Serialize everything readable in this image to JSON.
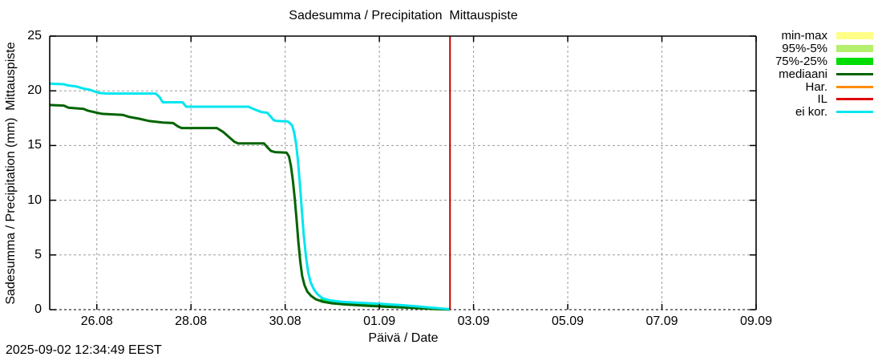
{
  "title": "Sadesumma / Precipitation  Mittauspiste",
  "timestamp": "2025-09-02 12:34:49 EEST",
  "axes": {
    "x_label": "Päivä / Date",
    "y_label": "Sadesumma / Precipitation (mm)  Mittauspiste"
  },
  "legend": [
    {
      "label": "min-max",
      "color": "#ffff87",
      "type": "band"
    },
    {
      "label": "95%-5%",
      "color": "#b4f06e",
      "type": "band"
    },
    {
      "label": "75%-25%",
      "color": "#00dd00",
      "type": "band"
    },
    {
      "label": "mediaani",
      "color": "#006400",
      "type": "line"
    },
    {
      "label": "Har.",
      "color": "#ff8c00",
      "type": "line"
    },
    {
      "label": "IL",
      "color": "#e00000",
      "type": "line"
    },
    {
      "label": "ei kor.",
      "color": "#00e6ee",
      "type": "line"
    }
  ],
  "chart_data": {
    "type": "line",
    "title": "Sadesumma / Precipitation  Mittauspiste",
    "xlabel": "Päivä / Date",
    "ylabel": "Sadesumma / Precipitation (mm)  Mittauspiste",
    "ylim": [
      0,
      25
    ],
    "y_ticks": [
      0,
      5,
      10,
      15,
      20,
      25
    ],
    "x_domain_days": [
      0,
      15
    ],
    "x_ticks": [
      {
        "day": 1,
        "label": "26.08"
      },
      {
        "day": 3,
        "label": "28.08"
      },
      {
        "day": 5,
        "label": "30.08"
      },
      {
        "day": 7,
        "label": "01.09"
      },
      {
        "day": 9,
        "label": "03.09"
      },
      {
        "day": 11,
        "label": "05.09"
      },
      {
        "day": 13,
        "label": "07.09"
      },
      {
        "day": 15,
        "label": "09.09"
      }
    ],
    "grid": true,
    "legend_position": "outside-top-right",
    "current_time_line": {
      "day": 8.5,
      "date_label": "02.09 ~12:34",
      "color": "#c40000"
    },
    "series": [
      {
        "name": "75%-25%",
        "color": "#00dd00",
        "width": 2,
        "points": [
          [
            5.75,
            0.95
          ],
          [
            5.95,
            0.78
          ],
          [
            6.2,
            0.66
          ],
          [
            6.6,
            0.56
          ],
          [
            7.0,
            0.47
          ],
          [
            7.4,
            0.37
          ],
          [
            7.8,
            0.25
          ],
          [
            8.15,
            0.12
          ],
          [
            8.5,
            0.02
          ]
        ]
      },
      {
        "name": "mediaani",
        "color": "#006400",
        "width": 3,
        "points": [
          [
            0,
            18.7
          ],
          [
            0.3,
            18.65
          ],
          [
            0.4,
            18.45
          ],
          [
            0.72,
            18.35
          ],
          [
            0.8,
            18.2
          ],
          [
            1.0,
            18.0
          ],
          [
            1.1,
            17.9
          ],
          [
            1.55,
            17.8
          ],
          [
            1.7,
            17.6
          ],
          [
            1.9,
            17.45
          ],
          [
            2.1,
            17.25
          ],
          [
            2.4,
            17.1
          ],
          [
            2.62,
            17.05
          ],
          [
            2.72,
            16.75
          ],
          [
            2.8,
            16.6
          ],
          [
            3.55,
            16.6
          ],
          [
            3.68,
            16.25
          ],
          [
            3.8,
            15.8
          ],
          [
            3.92,
            15.35
          ],
          [
            4.0,
            15.2
          ],
          [
            4.55,
            15.2
          ],
          [
            4.62,
            14.85
          ],
          [
            4.7,
            14.5
          ],
          [
            4.78,
            14.4
          ],
          [
            5.03,
            14.35
          ],
          [
            5.08,
            14.0
          ],
          [
            5.12,
            13.2
          ],
          [
            5.16,
            11.9
          ],
          [
            5.2,
            10.3
          ],
          [
            5.24,
            8.3
          ],
          [
            5.28,
            6.2
          ],
          [
            5.32,
            4.4
          ],
          [
            5.36,
            3.1
          ],
          [
            5.41,
            2.25
          ],
          [
            5.47,
            1.65
          ],
          [
            5.55,
            1.25
          ],
          [
            5.65,
            0.95
          ],
          [
            5.8,
            0.72
          ],
          [
            6.0,
            0.58
          ],
          [
            6.3,
            0.47
          ],
          [
            6.7,
            0.37
          ],
          [
            7.1,
            0.28
          ],
          [
            7.5,
            0.2
          ],
          [
            7.9,
            0.12
          ],
          [
            8.2,
            0.06
          ],
          [
            8.5,
            0.01
          ]
        ]
      },
      {
        "name": "ei kor.",
        "color": "#00e6ee",
        "width": 3,
        "points": [
          [
            0,
            20.65
          ],
          [
            0.3,
            20.6
          ],
          [
            0.38,
            20.5
          ],
          [
            0.56,
            20.4
          ],
          [
            0.72,
            20.2
          ],
          [
            0.85,
            20.1
          ],
          [
            0.95,
            19.95
          ],
          [
            1.05,
            19.8
          ],
          [
            1.2,
            19.75
          ],
          [
            2.25,
            19.75
          ],
          [
            2.33,
            19.45
          ],
          [
            2.4,
            18.95
          ],
          [
            2.82,
            18.95
          ],
          [
            2.9,
            18.55
          ],
          [
            4.22,
            18.55
          ],
          [
            4.32,
            18.35
          ],
          [
            4.5,
            18.05
          ],
          [
            4.62,
            18.0
          ],
          [
            4.68,
            17.7
          ],
          [
            4.76,
            17.3
          ],
          [
            4.82,
            17.25
          ],
          [
            5.05,
            17.2
          ],
          [
            5.1,
            17.05
          ],
          [
            5.15,
            16.8
          ],
          [
            5.19,
            16.2
          ],
          [
            5.23,
            15.2
          ],
          [
            5.27,
            13.7
          ],
          [
            5.31,
            11.6
          ],
          [
            5.35,
            9.3
          ],
          [
            5.39,
            7.0
          ],
          [
            5.44,
            4.9
          ],
          [
            5.49,
            3.4
          ],
          [
            5.54,
            2.5
          ],
          [
            5.61,
            1.85
          ],
          [
            5.69,
            1.4
          ],
          [
            5.79,
            1.05
          ],
          [
            5.95,
            0.85
          ],
          [
            6.2,
            0.72
          ],
          [
            6.6,
            0.62
          ],
          [
            7.0,
            0.54
          ],
          [
            7.4,
            0.43
          ],
          [
            7.8,
            0.3
          ],
          [
            8.15,
            0.16
          ],
          [
            8.5,
            0.04
          ]
        ]
      }
    ]
  }
}
